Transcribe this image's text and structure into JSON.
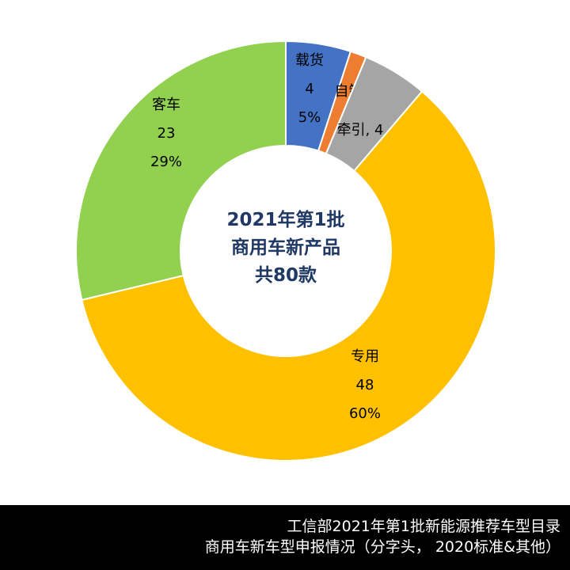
{
  "chart_data": {
    "type": "pie",
    "subtype": "donut",
    "center_title": [
      "2021年第1批",
      "商用车新产品",
      "共80款"
    ],
    "slices": [
      {
        "label": "载货",
        "value": 4,
        "percent": "5%",
        "color": "#4472C4",
        "label_style": "stacked"
      },
      {
        "label": "自卸",
        "value": 1,
        "percent": "1%",
        "color": "#ED7D31",
        "label_style": "inline"
      },
      {
        "label": "牵引",
        "value": 4,
        "percent": "5%",
        "color": "#A5A5A5",
        "label_style": "inline"
      },
      {
        "label": "专用",
        "value": 48,
        "percent": "60%",
        "color": "#FFC000",
        "label_style": "stacked"
      },
      {
        "label": "客车",
        "value": 23,
        "percent": "29%",
        "color": "#92D050",
        "label_style": "stacked"
      }
    ]
  },
  "footer": {
    "line1": "工信部2021年第1批新能源推荐车型目录",
    "line2": "商用车新车型申报情况（分字头， 2020标准&其他）"
  }
}
